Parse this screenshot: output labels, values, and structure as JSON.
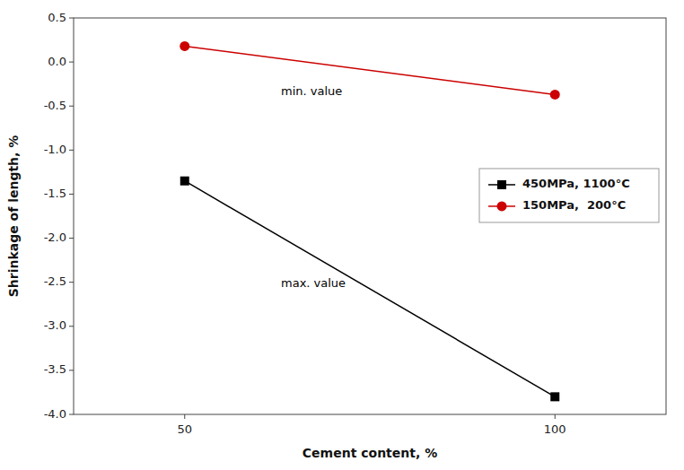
{
  "chart_data": {
    "type": "line",
    "x": [
      50,
      100
    ],
    "series": [
      {
        "name": "450MPa, 1100°C",
        "color": "#000000",
        "marker": "square",
        "values": [
          -1.35,
          -3.8
        ]
      },
      {
        "name": "150MPa,  200°C",
        "color": "#cc0000",
        "marker": "circle",
        "values": [
          0.18,
          -0.37
        ]
      }
    ],
    "x_label": "Cement content, %",
    "y_label": "Shrinkage of length, %",
    "xlim": [
      35,
      115
    ],
    "ylim": [
      -4.0,
      0.5
    ],
    "xticks": [
      50,
      100
    ],
    "yticks": [
      0.5,
      {
        "value": 0.0,
        "label": "0.0"
      },
      -0.5,
      {
        "value": -1.0,
        "label": "-1.0"
      },
      -1.5,
      {
        "value": -2.0,
        "label": "-2.0"
      },
      -2.5,
      {
        "value": -3.0,
        "label": "-3.0"
      },
      -3.5,
      {
        "value": -4.0,
        "label": "-4.0"
      }
    ],
    "annotations": [
      {
        "text": "min. value",
        "x": 63,
        "y": -0.38
      },
      {
        "text": "max. value",
        "x": 63,
        "y": -2.55
      }
    ],
    "grid": false,
    "legend": "right"
  }
}
